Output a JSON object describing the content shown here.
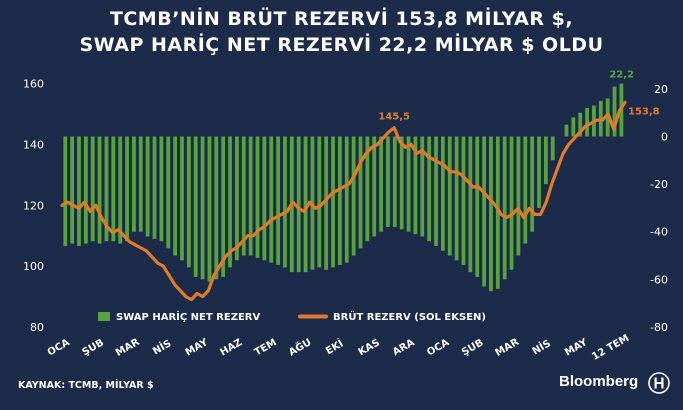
{
  "title_line1": "TCMB’NİN BRÜT REZERVİ 153,8 MİLYAR $,",
  "title_line2": "SWAP HARİÇ NET REZERVİ 22,2 MİLYAR $ OLDU",
  "source": "KAYNAK: TCMB, MİLYAR $",
  "brand": "Bloomberg",
  "colors": {
    "background": "#1c2b4a",
    "bars": "#58a33c",
    "line": "#e07b29",
    "text": "#ffffff"
  },
  "chart_data": {
    "type": "bar+line",
    "x_ticks": [
      "OCA",
      "ŞUB",
      "MAR",
      "NİS",
      "MAY",
      "HAZ",
      "TEM",
      "AĞU",
      "EKİ",
      "KAS",
      "ARA",
      "OCA",
      "ŞUB",
      "MAR",
      "NİS",
      "MAY",
      "12 TEM"
    ],
    "left_axis": {
      "ticks": [
        80,
        100,
        120,
        140,
        160
      ],
      "ylim": [
        80,
        160
      ]
    },
    "right_axis": {
      "ticks": [
        -80,
        -60,
        -40,
        -20,
        0,
        20
      ],
      "ylim": [
        -80,
        25
      ]
    },
    "legend": [
      "SWAP HARİÇ NET REZERV",
      "BRÜT REZERV (SOL EKSEN)"
    ],
    "series": [
      {
        "name": "SWAP HARİÇ NET REZERV",
        "type": "bar",
        "axis": "right",
        "values": [
          -46,
          -45,
          -46,
          -45,
          -44,
          -45,
          -44,
          -44,
          -45,
          -44,
          -40,
          -40,
          -42,
          -43,
          -44,
          -47,
          -50,
          -52,
          -55,
          -59,
          -60,
          -61,
          -60,
          -59,
          -55,
          -52,
          -50,
          -50,
          -51,
          -52,
          -53,
          -54,
          -55,
          -57,
          -57,
          -57,
          -56,
          -55,
          -56,
          -55,
          -54,
          -53,
          -50,
          -47,
          -44,
          -42,
          -40,
          -38,
          -38,
          -39,
          -40,
          -41,
          -42,
          -44,
          -46,
          -48,
          -50,
          -52,
          -54,
          -57,
          -59,
          -63,
          -65,
          -64,
          -60,
          -56,
          -50,
          -45,
          -40,
          -30,
          -20,
          -10,
          0,
          5,
          8,
          10,
          12,
          13,
          15,
          16,
          21,
          22.2
        ]
      },
      {
        "name": "BRÜT REZERV (SOL EKSEN)",
        "type": "line",
        "axis": "left",
        "values": [
          120,
          121,
          120,
          119,
          121,
          118,
          120,
          116,
          113,
          111,
          112,
          110,
          108,
          107,
          106,
          105,
          103,
          101,
          100,
          97,
          94,
          92,
          90,
          89,
          91,
          90,
          92,
          97,
          100,
          103,
          105,
          106,
          108,
          110,
          110,
          112,
          113,
          115,
          116,
          117,
          118,
          121,
          119,
          118,
          121,
          119,
          120,
          122,
          124,
          125,
          126,
          127,
          130,
          134,
          137,
          139,
          140,
          142,
          144,
          145.5,
          141,
          139,
          140,
          137,
          138,
          136,
          135,
          134,
          133,
          131,
          131,
          130,
          128,
          126,
          126,
          124,
          122,
          120,
          117,
          116,
          117,
          119,
          116,
          119,
          117,
          117,
          121,
          127,
          132,
          137,
          140,
          142,
          144,
          146,
          147,
          148,
          148,
          150,
          145,
          151,
          153.8
        ]
      }
    ],
    "annotations": [
      {
        "label": "145,5",
        "series": "BRÜT REZERV (SOL EKSEN)",
        "value": 145.5
      },
      {
        "label": "22,2",
        "series": "SWAP HARİÇ NET REZERV",
        "value": 22.2
      },
      {
        "label": "153,8",
        "series": "BRÜT REZERV (SOL EKSEN)",
        "value": 153.8
      }
    ],
    "grid": false,
    "legend_position": "bottom"
  }
}
